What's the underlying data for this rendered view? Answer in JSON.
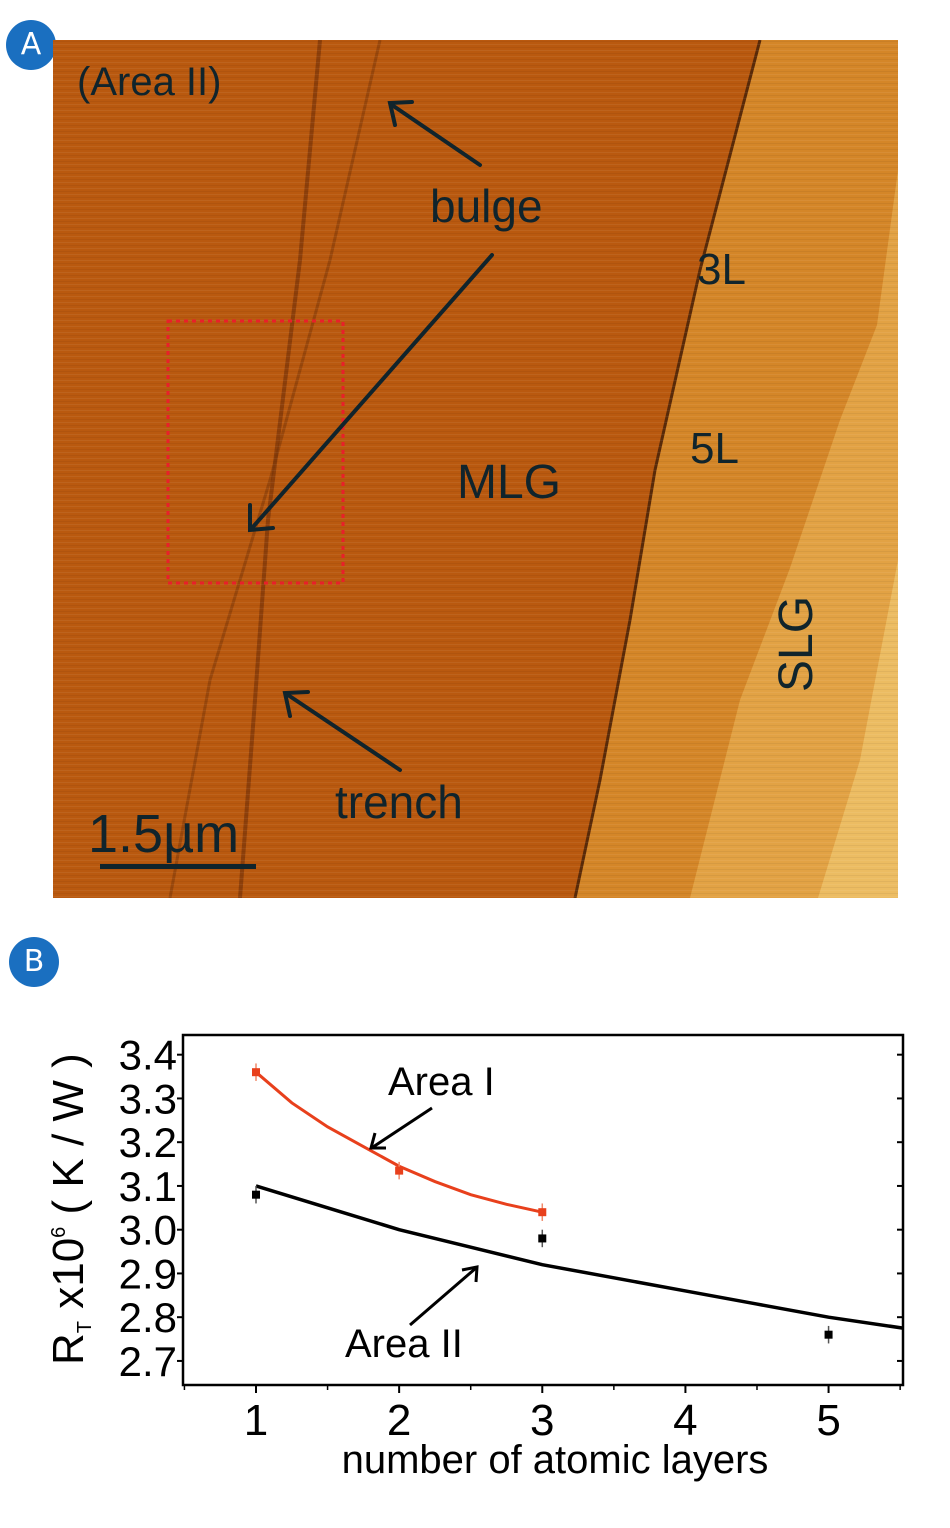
{
  "panel_a": {
    "badge": "A",
    "area_label": "(Area II)",
    "labels": {
      "bulge": "bulge",
      "trench": "trench",
      "mlg": "MLG",
      "slg": "SLG",
      "three_layer": "3L",
      "five_layer": "5L"
    },
    "scale_bar": "1.5µm",
    "colors": {
      "mlg": "#b9590f",
      "few_layer": "#d48628",
      "slg": "#e2a244",
      "bright": "#ecbc62",
      "highlight_box": "#e8202a"
    }
  },
  "panel_b": {
    "badge": "B"
  },
  "chart_data": {
    "type": "line",
    "xlabel": "number of atomic layers",
    "ylabel_main": "R",
    "ylabel_sub": "T",
    "ylabel_rest": " x10",
    "ylabel_sup": "6",
    "ylabel_unit": " ( K / W )",
    "xlim": [
      0.49,
      5.52
    ],
    "ylim": [
      2.645,
      3.445
    ],
    "xticks": [
      "1",
      "2",
      "3",
      "4",
      "5"
    ],
    "yticks": [
      "2.7",
      "2.8",
      "2.9",
      "3.0",
      "3.1",
      "3.2",
      "3.3",
      "3.4"
    ],
    "grid": false,
    "series": [
      {
        "name": "Area I",
        "color": "#e8401c",
        "points": [
          {
            "x": 1,
            "y": 3.36,
            "err": 0.02
          },
          {
            "x": 2,
            "y": 3.135,
            "err": 0.02
          },
          {
            "x": 3,
            "y": 3.04,
            "err": 0.02
          }
        ],
        "fit": [
          [
            1,
            3.36
          ],
          [
            1.25,
            3.29
          ],
          [
            1.5,
            3.235
          ],
          [
            1.75,
            3.19
          ],
          [
            2,
            3.145
          ],
          [
            2.25,
            3.11
          ],
          [
            2.5,
            3.08
          ],
          [
            2.75,
            3.058
          ],
          [
            3,
            3.04
          ]
        ]
      },
      {
        "name": "Area II",
        "color": "#000000",
        "points": [
          {
            "x": 1,
            "y": 3.08,
            "err": 0.02
          },
          {
            "x": 3,
            "y": 2.98,
            "err": 0.02
          },
          {
            "x": 5,
            "y": 2.76,
            "err": 0.02
          }
        ],
        "fit": [
          [
            1,
            3.1
          ],
          [
            1.5,
            3.05
          ],
          [
            2,
            3.0
          ],
          [
            2.5,
            2.96
          ],
          [
            3,
            2.92
          ],
          [
            3.5,
            2.89
          ],
          [
            4,
            2.86
          ],
          [
            4.5,
            2.83
          ],
          [
            5,
            2.8
          ],
          [
            5.52,
            2.775
          ]
        ]
      }
    ],
    "annotations": [
      "Area I",
      "Area II"
    ]
  }
}
